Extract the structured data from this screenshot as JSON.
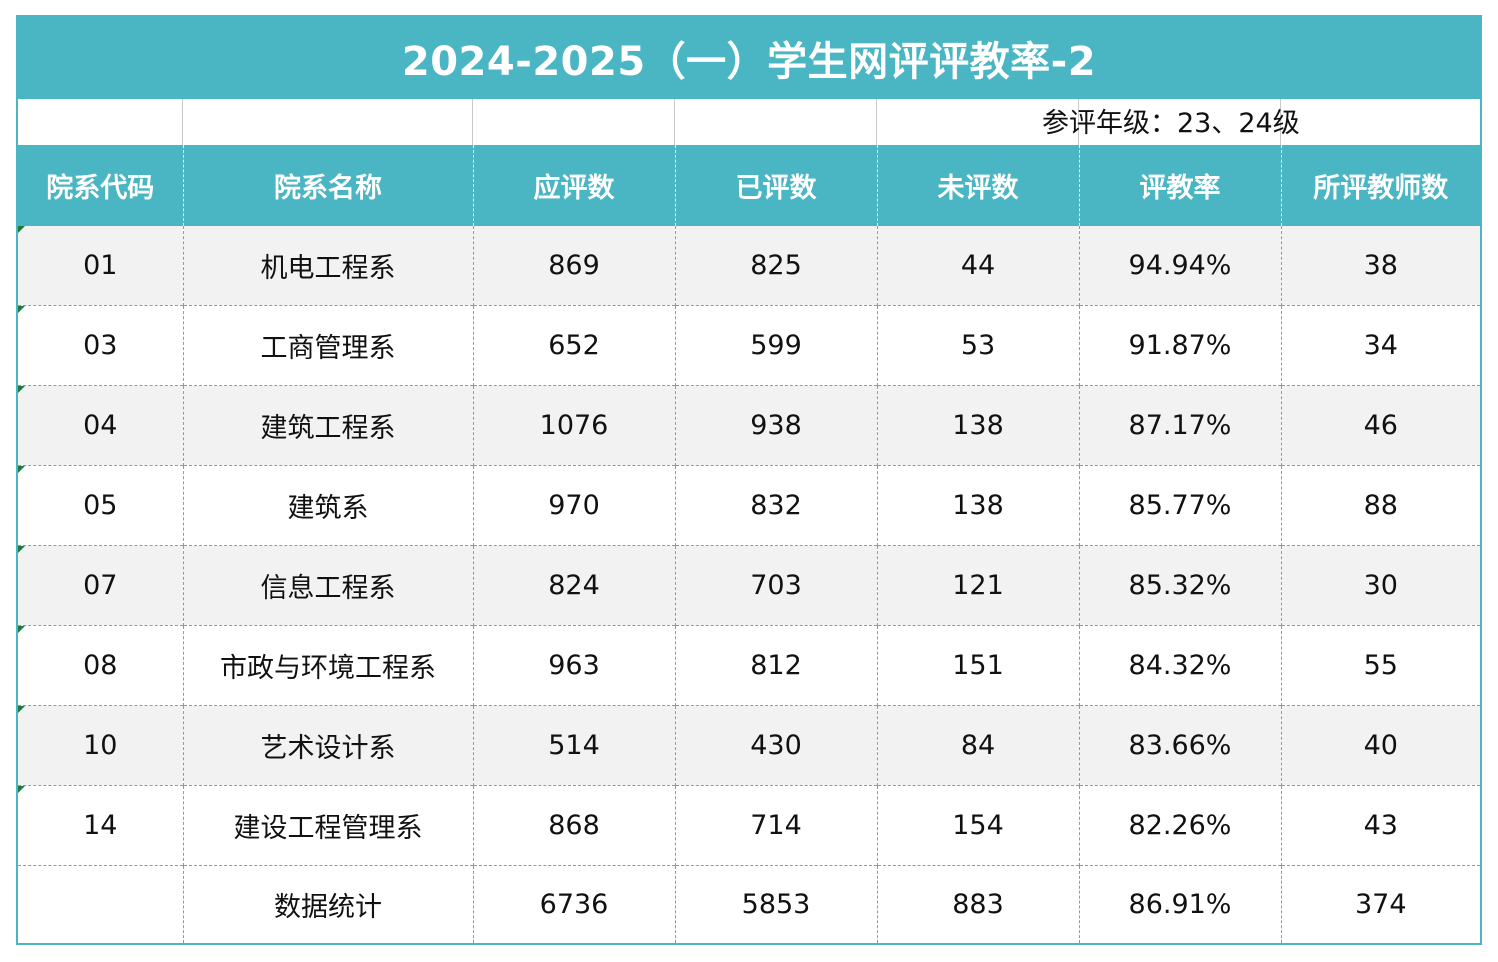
{
  "title": "2024-2025（一）学生网评评教率-2",
  "grade_note": "参评年级：23、24级",
  "headers": [
    "院系代码",
    "院系名称",
    "应评数",
    "已评数",
    "未评数",
    "评教率",
    "所评教师数"
  ],
  "rows": [
    {
      "code": "01",
      "name": "机电工程系",
      "should": "869",
      "done": "825",
      "pending": "44",
      "rate": "94.94%",
      "teachers": "38"
    },
    {
      "code": "03",
      "name": "工商管理系",
      "should": "652",
      "done": "599",
      "pending": "53",
      "rate": "91.87%",
      "teachers": "34"
    },
    {
      "code": "04",
      "name": "建筑工程系",
      "should": "1076",
      "done": "938",
      "pending": "138",
      "rate": "87.17%",
      "teachers": "46"
    },
    {
      "code": "05",
      "name": "建筑系",
      "should": "970",
      "done": "832",
      "pending": "138",
      "rate": "85.77%",
      "teachers": "88"
    },
    {
      "code": "07",
      "name": "信息工程系",
      "should": "824",
      "done": "703",
      "pending": "121",
      "rate": "85.32%",
      "teachers": "30"
    },
    {
      "code": "08",
      "name": "市政与环境工程系",
      "should": "963",
      "done": "812",
      "pending": "151",
      "rate": "84.32%",
      "teachers": "55"
    },
    {
      "code": "10",
      "name": "艺术设计系",
      "should": "514",
      "done": "430",
      "pending": "84",
      "rate": "83.66%",
      "teachers": "40"
    },
    {
      "code": "14",
      "name": "建设工程管理系",
      "should": "868",
      "done": "714",
      "pending": "154",
      "rate": "82.26%",
      "teachers": "43"
    }
  ],
  "summary": {
    "code": "",
    "name": "数据统计",
    "should": "6736",
    "done": "5853",
    "pending": "883",
    "rate": "86.91%",
    "teachers": "374"
  },
  "colors": {
    "accent": "#4ab5c3",
    "stripe": "#f2f2f2",
    "marker": "#1f7a3a"
  }
}
